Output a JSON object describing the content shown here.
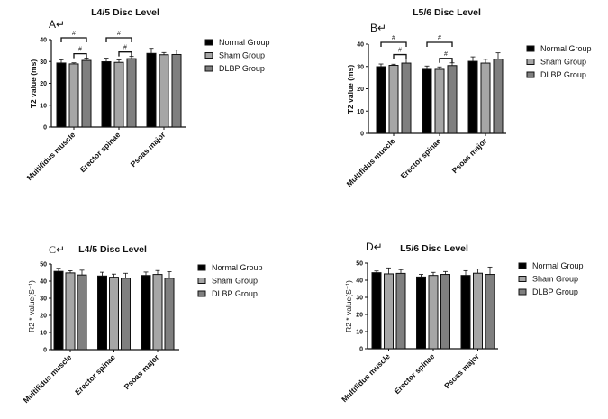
{
  "colors": {
    "normal": "#000000",
    "sham": "#a6a6a6",
    "dlbp": "#7f7f7f",
    "stroke": "#111111"
  },
  "chart_data": [
    {
      "id": "A",
      "type": "bar",
      "panel_label": "A↵",
      "title": "L4/5 Disc Level",
      "xlabel": "",
      "ylabel": "T2 value (ms)",
      "ylim": [
        0,
        40
      ],
      "yticks": [
        "0",
        "10",
        "20",
        "30",
        "40"
      ],
      "categories": [
        "Multifidus muscle",
        "Erector spinae",
        "Psoas major"
      ],
      "series": [
        {
          "name": "Normal Group",
          "values": [
            29.3,
            29.9,
            33.7
          ],
          "errors": [
            1.5,
            1.6,
            2.3
          ]
        },
        {
          "name": "Sham Group",
          "values": [
            28.9,
            29.6,
            33.1
          ],
          "errors": [
            0.5,
            1.1,
            1.0
          ]
        },
        {
          "name": "DLBP Group",
          "values": [
            30.5,
            31.3,
            33.2
          ],
          "errors": [
            1.0,
            1.0,
            2.0
          ]
        }
      ],
      "significance": [
        {
          "category": 0,
          "from": 0,
          "to": 2,
          "label": "#"
        },
        {
          "category": 0,
          "from": 1,
          "to": 2,
          "label": "#"
        },
        {
          "category": 1,
          "from": 0,
          "to": 2,
          "label": "#"
        },
        {
          "category": 1,
          "from": 1,
          "to": 2,
          "label": "#"
        }
      ],
      "legend": [
        "Normal Group",
        "Sham Group",
        "DLBP Group"
      ],
      "legend_position": "right"
    },
    {
      "id": "B",
      "type": "bar",
      "panel_label": "B↵",
      "title": "L5/6 Disc Level",
      "xlabel": "",
      "ylabel": "T2 value (ms)",
      "ylim": [
        0,
        40
      ],
      "yticks": [
        "0",
        "10",
        "20",
        "30",
        "40"
      ],
      "categories": [
        "Multifidus muscle",
        "Erector spinae",
        "Psoas major"
      ],
      "series": [
        {
          "name": "Normal Group",
          "values": [
            29.9,
            28.7,
            32.3
          ],
          "errors": [
            1.2,
            1.5,
            2.0
          ]
        },
        {
          "name": "Sham Group",
          "values": [
            30.5,
            28.7,
            31.5
          ],
          "errors": [
            0.5,
            1.1,
            1.7
          ]
        },
        {
          "name": "DLBP Group",
          "values": [
            31.5,
            30.4,
            33.3
          ],
          "errors": [
            1.8,
            1.2,
            2.8
          ]
        }
      ],
      "significance": [
        {
          "category": 0,
          "from": 0,
          "to": 2,
          "label": "#"
        },
        {
          "category": 0,
          "from": 1,
          "to": 2,
          "label": "#"
        },
        {
          "category": 1,
          "from": 0,
          "to": 2,
          "label": "#"
        },
        {
          "category": 1,
          "from": 1,
          "to": 2,
          "label": "#"
        }
      ],
      "legend": [
        "Normal Group",
        "Sham Group",
        "DLBP Group"
      ],
      "legend_position": "right"
    },
    {
      "id": "C",
      "type": "bar",
      "panel_label": "C↵",
      "title": "L4/5 Disc Level",
      "xlabel": "",
      "ylabel": "R2 * value(S⁻¹)",
      "ylim": [
        0,
        50
      ],
      "yticks": [
        "0",
        "10",
        "20",
        "30",
        "40",
        "50"
      ],
      "categories": [
        "Multifidus muscle",
        "Erector spinae",
        "Psoas major"
      ],
      "series": [
        {
          "name": "Normal Group",
          "values": [
            45.7,
            43.0,
            43.3
          ],
          "errors": [
            1.8,
            2.2,
            2.0
          ]
        },
        {
          "name": "Sham Group",
          "values": [
            44.8,
            42.3,
            43.9
          ],
          "errors": [
            1.3,
            1.8,
            2.3
          ]
        },
        {
          "name": "DLBP Group",
          "values": [
            43.6,
            41.7,
            41.7
          ],
          "errors": [
            2.8,
            2.9,
            3.8
          ]
        }
      ],
      "significance": [],
      "legend": [
        "Normal Group",
        "Sham Group",
        "DLBP Group"
      ],
      "legend_position": "right"
    },
    {
      "id": "D",
      "type": "bar",
      "panel_label": "D↵",
      "title": "L5/6 Disc Level",
      "xlabel": "",
      "ylabel": "R2 * value(S⁻¹)",
      "ylim": [
        0,
        50
      ],
      "yticks": [
        "0",
        "10",
        "20",
        "30",
        "40",
        "50"
      ],
      "categories": [
        "Multifidus muscle",
        "Erector spinae",
        "Psoas major"
      ],
      "series": [
        {
          "name": "Normal Group",
          "values": [
            44.4,
            41.9,
            42.8
          ],
          "errors": [
            1.0,
            1.5,
            2.8
          ]
        },
        {
          "name": "Sham Group",
          "values": [
            43.7,
            42.8,
            44.1
          ],
          "errors": [
            3.5,
            1.8,
            2.4
          ]
        },
        {
          "name": "DLBP Group",
          "values": [
            44.0,
            43.4,
            43.4
          ],
          "errors": [
            2.2,
            1.7,
            4.3
          ]
        }
      ],
      "significance": [],
      "legend": [
        "Normal Group",
        "Sham Group",
        "DLBP Group"
      ],
      "legend_position": "right"
    }
  ]
}
